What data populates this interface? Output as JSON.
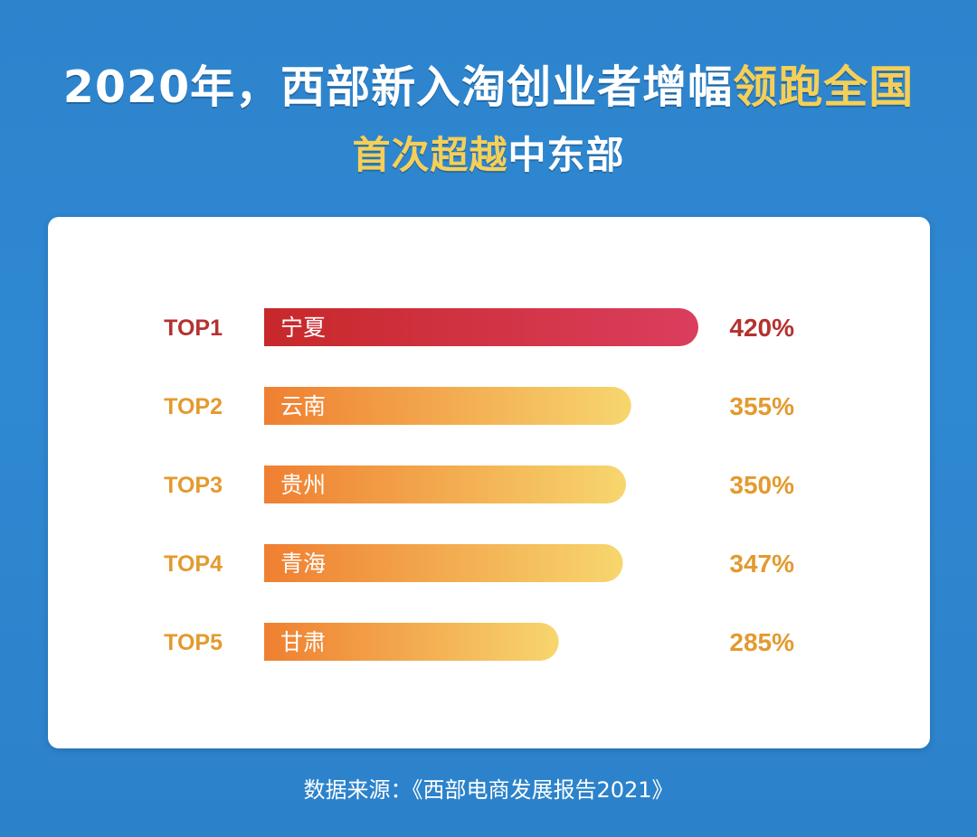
{
  "title": {
    "prefix": "2020年，西部新入淘创业者增幅",
    "accent": "领跑全国"
  },
  "subtitle": {
    "accent": "首次超越",
    "suffix": "中东部"
  },
  "source": "数据来源：《西部电商发展报告2021》",
  "chart_data": {
    "type": "bar",
    "orientation": "horizontal",
    "title": "2020年，西部新入淘创业者增幅领跑全国",
    "subtitle": "首次超越中东部",
    "series": [
      {
        "values": [
          420,
          355,
          350,
          347,
          285
        ]
      }
    ],
    "ranks": [
      "TOP1",
      "TOP2",
      "TOP3",
      "TOP4",
      "TOP5"
    ],
    "categories": [
      "宁夏",
      "云南",
      "贵州",
      "青海",
      "甘肃"
    ],
    "values": [
      420,
      355,
      350,
      347,
      285
    ],
    "value_labels": [
      "420%",
      "355%",
      "350%",
      "347%",
      "285%"
    ],
    "xlabel": "",
    "ylabel": "",
    "grid": false,
    "legend": "none",
    "colors": {
      "top1_start": "#c7282a",
      "top1_end": "#db3e5d",
      "top_rank": "#b43230",
      "rest_start": "#ef7f31",
      "rest_end": "#f7d66e",
      "rest_rank": "#e39a2e",
      "bar_label": "#ffffff"
    }
  }
}
